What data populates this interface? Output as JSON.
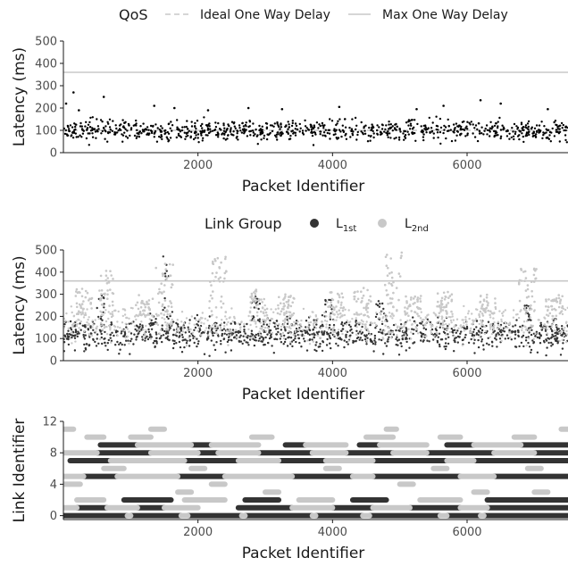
{
  "legend_top": {
    "title": "QoS",
    "items": [
      {
        "label": "Ideal One Way Delay",
        "style": "dashed",
        "color": "#c8c8c8"
      },
      {
        "label": "Max One Way Delay",
        "style": "solid",
        "color": "#c8c8c8"
      }
    ]
  },
  "legend_mid": {
    "title": "Link Group",
    "items": [
      {
        "label": "L",
        "sub": "1st",
        "color": "#333333"
      },
      {
        "label": "L",
        "sub": "2nd",
        "color": "#c8c8c8"
      }
    ]
  },
  "chart_data": [
    {
      "type": "scatter",
      "xlabel": "Packet Identifier",
      "ylabel": "Latency (ms)",
      "xlim": [
        0,
        7500
      ],
      "ylim": [
        0,
        500
      ],
      "x_ticks": [
        2000,
        4000,
        6000
      ],
      "y_ticks": [
        0,
        100,
        200,
        300,
        400,
        500
      ],
      "reference_lines": [
        {
          "name": "Ideal One Way Delay",
          "y": 100,
          "style": "dashed"
        },
        {
          "name": "Max One Way Delay",
          "y": 360,
          "style": "solid"
        }
      ],
      "series": [
        {
          "color": "#000000",
          "band": [
            60,
            140
          ],
          "outliers": [
            [
              40,
              220
            ],
            [
              150,
              270
            ],
            [
              230,
              190
            ],
            [
              600,
              250
            ],
            [
              1350,
              210
            ],
            [
              1650,
              200
            ],
            [
              2150,
              190
            ],
            [
              2750,
              200
            ],
            [
              3250,
              195
            ],
            [
              4100,
              205
            ],
            [
              5250,
              195
            ],
            [
              5650,
              210
            ],
            [
              6200,
              235
            ],
            [
              6500,
              220
            ],
            [
              7200,
              195
            ]
          ]
        }
      ]
    },
    {
      "type": "scatter",
      "xlabel": "Packet Identifier",
      "ylabel": "Latency (ms)",
      "xlim": [
        0,
        7500
      ],
      "ylim": [
        0,
        500
      ],
      "x_ticks": [
        2000,
        4000,
        6000
      ],
      "y_ticks": [
        0,
        100,
        200,
        300,
        400,
        500
      ],
      "reference_lines": [
        {
          "name": "Max One Way Delay",
          "y": 360,
          "style": "solid"
        }
      ],
      "series": [
        {
          "name": "L1st",
          "color": "#333333",
          "band": [
            60,
            180
          ],
          "peaks": [
            [
              1550,
              480
            ],
            [
              550,
              300
            ],
            [
              2850,
              290
            ],
            [
              3950,
              285
            ],
            [
              4700,
              275
            ],
            [
              6900,
              270
            ]
          ]
        },
        {
          "name": "L2nd",
          "color": "#c8c8c8",
          "band": [
            100,
            230
          ],
          "clusters": [
            [
              300,
              330
            ],
            [
              650,
              420
            ],
            [
              1200,
              300
            ],
            [
              1500,
              450
            ],
            [
              2300,
              470
            ],
            [
              2900,
              320
            ],
            [
              3300,
              300
            ],
            [
              4050,
              310
            ],
            [
              4450,
              330
            ],
            [
              4900,
              490
            ],
            [
              5200,
              300
            ],
            [
              5650,
              310
            ],
            [
              6300,
              300
            ],
            [
              6900,
              420
            ],
            [
              7300,
              300
            ]
          ]
        }
      ]
    },
    {
      "type": "scatter",
      "xlabel": "Packet Identifier",
      "ylabel": "Link Identifier",
      "xlim": [
        0,
        7500
      ],
      "ylim": [
        -0.5,
        12
      ],
      "x_ticks": [
        2000,
        4000,
        6000
      ],
      "y_ticks": [
        0,
        4,
        8,
        12
      ],
      "segments": [
        {
          "y": 0,
          "color": "#333333",
          "ranges": [
            [
              0,
              950
            ],
            [
              1000,
              1750
            ],
            [
              1850,
              2650
            ],
            [
              2700,
              3700
            ],
            [
              3750,
              4450
            ],
            [
              4550,
              5600
            ],
            [
              5700,
              6200
            ],
            [
              6250,
              7500
            ]
          ]
        },
        {
          "y": 0,
          "color": "#c8c8c8",
          "ranges": [
            [
              950,
              1000
            ],
            [
              1750,
              1850
            ],
            [
              2650,
              2700
            ],
            [
              3700,
              3750
            ],
            [
              4450,
              4550
            ],
            [
              5600,
              5700
            ],
            [
              6200,
              6250
            ]
          ]
        },
        {
          "y": 1,
          "color": "#333333",
          "ranges": [
            [
              200,
              650
            ],
            [
              1100,
              1500
            ],
            [
              2600,
              3400
            ],
            [
              4000,
              4600
            ],
            [
              5150,
              5900
            ],
            [
              6300,
              7500
            ]
          ]
        },
        {
          "y": 1,
          "color": "#c8c8c8",
          "ranges": [
            [
              0,
              200
            ],
            [
              650,
              1100
            ],
            [
              1500,
              2000
            ],
            [
              3400,
              4000
            ],
            [
              4600,
              5150
            ],
            [
              5900,
              6300
            ]
          ]
        },
        {
          "y": 2,
          "color": "#333333",
          "ranges": [
            [
              900,
              1600
            ],
            [
              2700,
              3200
            ],
            [
              4300,
              4800
            ],
            [
              6300,
              7500
            ]
          ]
        },
        {
          "y": 2,
          "color": "#c8c8c8",
          "ranges": [
            [
              200,
              600
            ],
            [
              1800,
              2400
            ],
            [
              3500,
              4000
            ],
            [
              5300,
              5900
            ]
          ]
        },
        {
          "y": 3,
          "color": "#c8c8c8",
          "ranges": [
            [
              1700,
              1900
            ],
            [
              3000,
              3200
            ],
            [
              6100,
              6300
            ],
            [
              7000,
              7200
            ]
          ]
        },
        {
          "y": 4,
          "color": "#c8c8c8",
          "ranges": [
            [
              0,
              250
            ],
            [
              2200,
              2400
            ],
            [
              5000,
              5200
            ]
          ]
        },
        {
          "y": 5,
          "color": "#333333",
          "ranges": [
            [
              300,
              800
            ],
            [
              1700,
              2400
            ],
            [
              3400,
              4300
            ],
            [
              4600,
              5900
            ],
            [
              6400,
              7500
            ]
          ]
        },
        {
          "y": 5,
          "color": "#c8c8c8",
          "ranges": [
            [
              0,
              300
            ],
            [
              800,
              1700
            ],
            [
              2400,
              3400
            ],
            [
              4300,
              4600
            ],
            [
              5900,
              6400
            ]
          ]
        },
        {
          "y": 6,
          "color": "#c8c8c8",
          "ranges": [
            [
              600,
              900
            ],
            [
              1900,
              2100
            ],
            [
              3900,
              4100
            ],
            [
              5500,
              5700
            ],
            [
              6900,
              7100
            ]
          ]
        },
        {
          "y": 7,
          "color": "#333333",
          "ranges": [
            [
              100,
              700
            ],
            [
              1800,
              2600
            ],
            [
              3200,
              3900
            ],
            [
              4600,
              5700
            ],
            [
              6100,
              7500
            ]
          ]
        },
        {
          "y": 7,
          "color": "#c8c8c8",
          "ranges": [
            [
              700,
              1800
            ],
            [
              2600,
              3200
            ],
            [
              3900,
              4600
            ],
            [
              5700,
              6100
            ]
          ]
        },
        {
          "y": 8,
          "color": "#333333",
          "ranges": [
            [
              500,
              1300
            ],
            [
              2000,
              2300
            ],
            [
              2900,
              3700
            ],
            [
              4200,
              4900
            ],
            [
              5400,
              6400
            ],
            [
              7000,
              7500
            ]
          ]
        },
        {
          "y": 8,
          "color": "#c8c8c8",
          "ranges": [
            [
              0,
              500
            ],
            [
              1300,
              2000
            ],
            [
              2300,
              2900
            ],
            [
              3700,
              4200
            ],
            [
              4900,
              5400
            ],
            [
              6400,
              7000
            ]
          ]
        },
        {
          "y": 9,
          "color": "#333333",
          "ranges": [
            [
              550,
              1100
            ],
            [
              1900,
              2200
            ],
            [
              3300,
              3600
            ],
            [
              4400,
              4700
            ],
            [
              5700,
              6100
            ],
            [
              6800,
              7500
            ]
          ]
        },
        {
          "y": 9,
          "color": "#c8c8c8",
          "ranges": [
            [
              1100,
              1900
            ],
            [
              2200,
              2900
            ],
            [
              3600,
              4200
            ],
            [
              4700,
              5400
            ],
            [
              6100,
              6800
            ]
          ]
        },
        {
          "y": 10,
          "color": "#c8c8c8",
          "ranges": [
            [
              350,
              600
            ],
            [
              1000,
              1300
            ],
            [
              2800,
              3100
            ],
            [
              4500,
              4900
            ],
            [
              5600,
              5900
            ],
            [
              6700,
              7000
            ]
          ]
        },
        {
          "y": 11,
          "color": "#c8c8c8",
          "ranges": [
            [
              0,
              150
            ],
            [
              1300,
              1500
            ],
            [
              4800,
              4950
            ],
            [
              7400,
              7500
            ]
          ]
        }
      ]
    }
  ]
}
